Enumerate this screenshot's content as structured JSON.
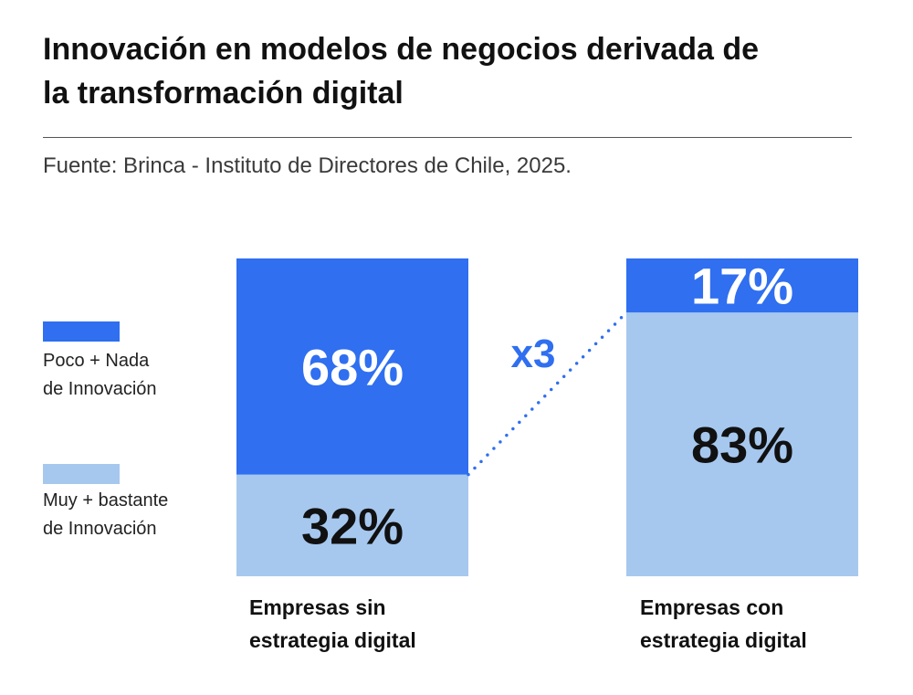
{
  "title_line1": "Innovación en modelos de negocios derivada de",
  "title_line2": "la transformación digital",
  "source": "Fuente: Brinca - Instituto de Directores de Chile, 2025.",
  "colors": {
    "dark_blue": "#2f6ff0",
    "light_blue": "#a6c8ef",
    "text": "#111111",
    "x3_text": "#2f6ff0"
  },
  "legend": [
    {
      "line1": "Poco + Nada",
      "line2": "de Innovación",
      "color": "#2f6ff0"
    },
    {
      "line1": "Muy + bastante",
      "line2": "de Innovación",
      "color": "#a6c8ef"
    }
  ],
  "annotation": "x3",
  "chart_data": {
    "type": "bar",
    "stacked": true,
    "categories": [
      "Empresas sin estrategia digital",
      "Empresas con estrategia digital"
    ],
    "category_labels": [
      {
        "line1": "Empresas sin",
        "line2": "estrategia digital"
      },
      {
        "line1": "Empresas con",
        "line2": "estrategia digital"
      }
    ],
    "series": [
      {
        "name": "Muy + bastante de Innovación",
        "values": [
          32,
          83
        ],
        "labels": [
          "32%",
          "83%"
        ]
      },
      {
        "name": "Poco + Nada de Innovación",
        "values": [
          68,
          17
        ],
        "labels": [
          "68%",
          "17%"
        ]
      }
    ],
    "ylim": [
      0,
      100
    ],
    "unit": "%"
  }
}
